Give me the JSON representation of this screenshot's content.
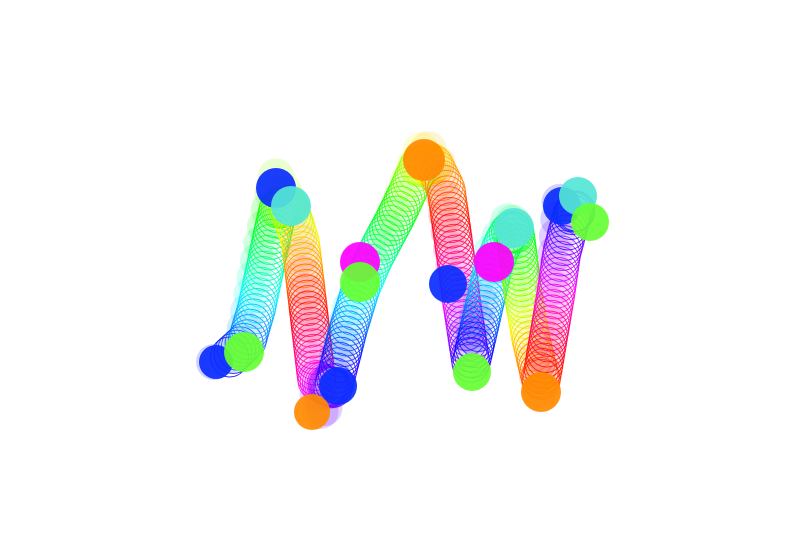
{
  "artwork": {
    "subject": "rainbow-slinky-spring",
    "background": "#ffffff",
    "palette": [
      "#0a2cff",
      "#ff00ff",
      "#ff3030",
      "#ff8a00",
      "#ffff00",
      "#66ff33",
      "#33ffaa",
      "#55e6d6"
    ]
  }
}
